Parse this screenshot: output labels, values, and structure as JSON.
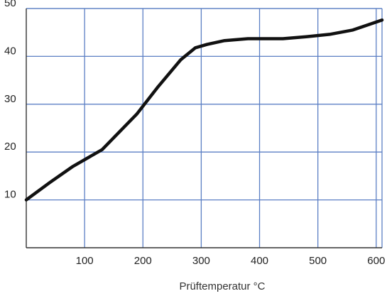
{
  "chart_data": {
    "type": "line",
    "title": "",
    "xlabel": "Prüftemperatur °C",
    "ylabel": "",
    "xlim": [
      0,
      610
    ],
    "ylim": [
      0,
      50
    ],
    "x_ticks": [
      100,
      200,
      300,
      400,
      500,
      600
    ],
    "y_ticks": [
      10,
      20,
      30,
      40,
      50
    ],
    "grid": true,
    "colors": {
      "grid": "#5b7fc4",
      "line": "#111111",
      "axis": "#333333"
    },
    "series": [
      {
        "x": [
          0,
          40,
          80,
          130,
          190,
          225,
          265,
          290,
          310,
          340,
          380,
          400,
          440,
          480,
          520,
          560,
          610
        ],
        "y": [
          10,
          13.6,
          17,
          20.5,
          28,
          33.5,
          39.3,
          41.8,
          42.5,
          43.3,
          43.7,
          43.7,
          43.7,
          44.1,
          44.6,
          45.5,
          47.6
        ]
      }
    ]
  }
}
